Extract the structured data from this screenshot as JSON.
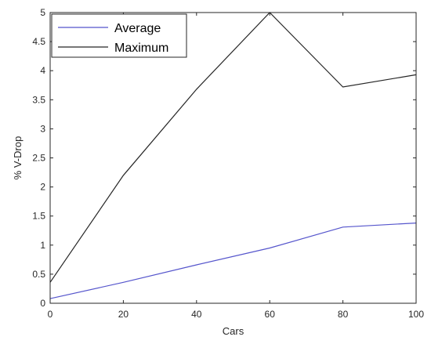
{
  "chart_data": {
    "type": "line",
    "title": "",
    "xlabel": "Cars",
    "ylabel": "% V-Drop",
    "xlim": [
      0,
      100
    ],
    "ylim": [
      0,
      5
    ],
    "xticks": [
      0,
      20,
      40,
      60,
      80,
      100
    ],
    "yticks": [
      0,
      0.5,
      1,
      1.5,
      2,
      2.5,
      3,
      3.5,
      4,
      4.5,
      5
    ],
    "xtick_labels": [
      "0",
      "20",
      "40",
      "60",
      "80",
      "100"
    ],
    "ytick_labels": [
      "0",
      "0.5",
      "1",
      "1.5",
      "2",
      "2.5",
      "3",
      "3.5",
      "4",
      "4.5",
      "5"
    ],
    "grid": false,
    "legend_position": "top-left",
    "x": [
      0,
      20,
      40,
      60,
      80,
      100
    ],
    "series": [
      {
        "name": "Average",
        "color": "#5555cc",
        "values": [
          0.08,
          0.36,
          0.66,
          0.95,
          1.31,
          1.38
        ]
      },
      {
        "name": "Maximum",
        "color": "#262626",
        "values": [
          0.36,
          2.2,
          3.68,
          5.0,
          3.72,
          3.93
        ]
      }
    ]
  }
}
